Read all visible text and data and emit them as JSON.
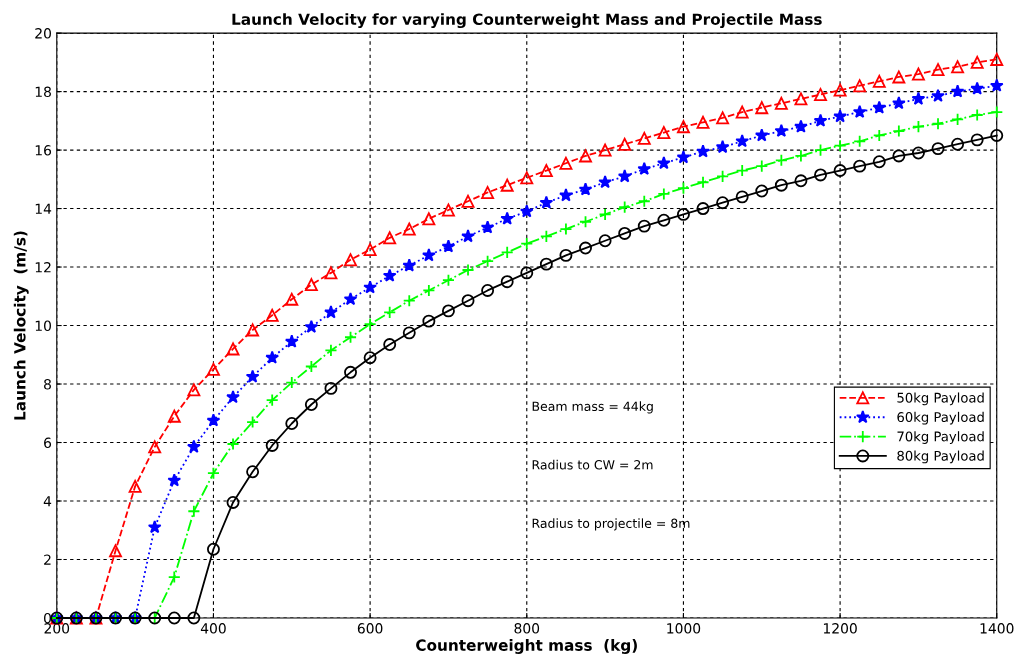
{
  "chart_data": {
    "type": "line",
    "title": "Launch Velocity for varying Counterweight Mass and Projectile Mass",
    "xlabel": "Counterweight mass  (kg)",
    "ylabel": "Launch Velocity  (m/s)",
    "x": [
      200,
      225,
      250,
      275,
      300,
      325,
      350,
      375,
      400,
      425,
      450,
      475,
      500,
      525,
      550,
      575,
      600,
      625,
      650,
      675,
      700,
      725,
      750,
      775,
      800,
      825,
      850,
      875,
      900,
      925,
      950,
      975,
      1000,
      1025,
      1050,
      1075,
      1100,
      1125,
      1150,
      1175,
      1200,
      1225,
      1250,
      1275,
      1300,
      1325,
      1350,
      1375,
      1400
    ],
    "series": [
      {
        "name": "50kg Payload",
        "color": "#ff0000",
        "marker": "triangle",
        "line_style": "dashed",
        "values": [
          0,
          0,
          0,
          2.3,
          4.5,
          5.85,
          6.9,
          7.8,
          8.5,
          9.2,
          9.85,
          10.35,
          10.9,
          11.4,
          11.8,
          12.25,
          12.6,
          13.0,
          13.3,
          13.65,
          13.95,
          14.25,
          14.55,
          14.8,
          15.05,
          15.3,
          15.55,
          15.8,
          16.0,
          16.2,
          16.4,
          16.6,
          16.8,
          16.95,
          17.1,
          17.3,
          17.45,
          17.6,
          17.75,
          17.9,
          18.05,
          18.2,
          18.35,
          18.5,
          18.6,
          18.75,
          18.85,
          19.0,
          19.1
        ]
      },
      {
        "name": "60kg Payload",
        "color": "#0000ff",
        "marker": "star",
        "line_style": "dotted",
        "values": [
          0,
          0,
          0,
          0,
          0,
          3.1,
          4.7,
          5.85,
          6.75,
          7.55,
          8.25,
          8.9,
          9.45,
          9.95,
          10.45,
          10.9,
          11.3,
          11.7,
          12.05,
          12.4,
          12.7,
          13.05,
          13.35,
          13.65,
          13.9,
          14.2,
          14.45,
          14.65,
          14.9,
          15.1,
          15.35,
          15.55,
          15.75,
          15.95,
          16.1,
          16.3,
          16.5,
          16.65,
          16.8,
          17.0,
          17.15,
          17.3,
          17.45,
          17.6,
          17.75,
          17.85,
          18.0,
          18.1,
          18.2
        ]
      },
      {
        "name": "70kg Payload",
        "color": "#00ff00",
        "marker": "cross",
        "line_style": "dashdot",
        "values": [
          0,
          0,
          0,
          0,
          0,
          0,
          1.4,
          3.65,
          4.95,
          5.95,
          6.7,
          7.45,
          8.05,
          8.6,
          9.15,
          9.6,
          10.05,
          10.45,
          10.85,
          11.2,
          11.55,
          11.9,
          12.2,
          12.5,
          12.8,
          13.05,
          13.3,
          13.55,
          13.8,
          14.05,
          14.25,
          14.5,
          14.7,
          14.9,
          15.1,
          15.3,
          15.45,
          15.65,
          15.8,
          16.0,
          16.15,
          16.3,
          16.5,
          16.65,
          16.8,
          16.9,
          17.05,
          17.2,
          17.3
        ]
      },
      {
        "name": "80kg Payload",
        "color": "#000000",
        "marker": "circle",
        "line_style": "solid",
        "values": [
          0,
          0,
          0,
          0,
          0,
          0,
          0,
          0,
          2.35,
          3.95,
          5.0,
          5.9,
          6.65,
          7.3,
          7.85,
          8.4,
          8.9,
          9.35,
          9.75,
          10.15,
          10.5,
          10.85,
          11.2,
          11.5,
          11.8,
          12.1,
          12.4,
          12.65,
          12.9,
          13.15,
          13.4,
          13.6,
          13.8,
          14.0,
          14.2,
          14.4,
          14.6,
          14.8,
          14.95,
          15.15,
          15.3,
          15.45,
          15.6,
          15.8,
          15.9,
          16.05,
          16.2,
          16.35,
          16.5
        ]
      }
    ],
    "xlim": [
      200,
      1400
    ],
    "xticks": [
      200,
      400,
      600,
      800,
      1000,
      1200,
      1400
    ],
    "ylim": [
      0,
      20
    ],
    "yticks": [
      0,
      2,
      4,
      6,
      8,
      10,
      12,
      14,
      16,
      18,
      20
    ],
    "grid": true,
    "legend": "right",
    "annotations": [
      "Beam mass = 44kg",
      "Radius to CW = 2m",
      "Radius to projectile = 8m"
    ]
  }
}
